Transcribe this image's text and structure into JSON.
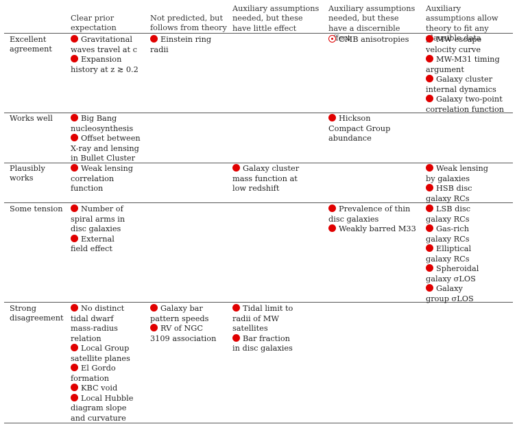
{
  "headers": [
    "Clear prior expectation",
    "Not predicted, but follows from theory",
    "Auxiliary assumptions needed, but these have little effect",
    "Auxiliary assumptions needed, but these have a discernible effect",
    "Auxiliary assumptions allow theory to fit any plausible data"
  ],
  "rows": [
    {
      "label": "Excellent agreement",
      "cells": [
        [
          {
            "text": "Gravitational waves travel at c",
            "marker": "filled"
          },
          {
            "text": "Expansion history at z ≳ 0.2",
            "marker": "filled"
          }
        ],
        [
          {
            "text": "Einstein ring radii",
            "marker": "filled"
          }
        ],
        [],
        [
          {
            "text": "CMB anisotropies",
            "marker": "ring"
          }
        ],
        [
          {
            "text": "MW escape velocity curve",
            "marker": "filled"
          },
          {
            "text": "MW-M31 timing argument",
            "marker": "filled"
          },
          {
            "text": "Galaxy cluster internal dynamics",
            "marker": "filled"
          },
          {
            "text": "Galaxy two-point correlation function",
            "marker": "filled"
          }
        ]
      ]
    },
    {
      "label": "Works well",
      "cells": [
        [
          {
            "text": "Big Bang nucleosynthesis",
            "marker": "filled"
          },
          {
            "text": "Offset between X-ray and lensing in Bullet Cluster",
            "marker": "filled"
          }
        ],
        [],
        [],
        [
          {
            "text": "Hickson Compact Group abundance",
            "marker": "filled"
          }
        ],
        []
      ]
    },
    {
      "label": "Plausibly works",
      "cells": [
        [
          {
            "text": "Weak lensing correlation function",
            "marker": "filled"
          }
        ],
        [],
        [
          {
            "text": "Galaxy cluster mass function at low redshift",
            "marker": "filled"
          }
        ],
        [],
        [
          {
            "text": "Weak lensing by galaxies",
            "marker": "filled"
          },
          {
            "text": "HSB disc galaxy RCs",
            "marker": "filled"
          }
        ]
      ]
    },
    {
      "label": "Some tension",
      "cells": [
        [
          {
            "text": "Number of spiral arms in disc galaxies",
            "marker": "filled"
          },
          {
            "text": "External field effect",
            "marker": "filled"
          }
        ],
        [],
        [],
        [
          {
            "text": "Prevalence of thin disc galaxies",
            "marker": "filled"
          },
          {
            "text": "Weakly barred M33",
            "marker": "filled"
          }
        ],
        [
          {
            "text": "LSB disc galaxy RCs",
            "marker": "filled"
          },
          {
            "text": "Gas-rich galaxy RCs",
            "marker": "filled"
          },
          {
            "text": "Elliptical galaxy RCs",
            "marker": "filled"
          },
          {
            "text": "Spheroidal galaxy σLOS",
            "marker": "filled"
          },
          {
            "text": "Galaxy group σLOS",
            "marker": "filled"
          }
        ]
      ]
    },
    {
      "label": "Strong disagreement",
      "cells": [
        [
          {
            "text": "No distinct tidal dwarf mass-radius relation",
            "marker": "filled"
          },
          {
            "text": "Local Group satellite planes",
            "marker": "filled"
          },
          {
            "text": "El Gordo formation",
            "marker": "filled"
          },
          {
            "text": "KBC void",
            "marker": "filled"
          },
          {
            "text": "Local Hubble diagram slope and curvature",
            "marker": "filled"
          }
        ],
        [
          {
            "text": "Galaxy bar pattern speeds",
            "marker": "filled"
          },
          {
            "text": "RV of NGC 3109 association",
            "marker": "filled"
          }
        ],
        [
          {
            "text": "Tidal limit to radii of MW satellites",
            "marker": "filled"
          },
          {
            "text": "Bar fraction in disc galaxies",
            "marker": "filled"
          }
        ],
        [],
        []
      ]
    }
  ],
  "colors": {
    "marker": "#e00000",
    "rule": "#555555"
  }
}
